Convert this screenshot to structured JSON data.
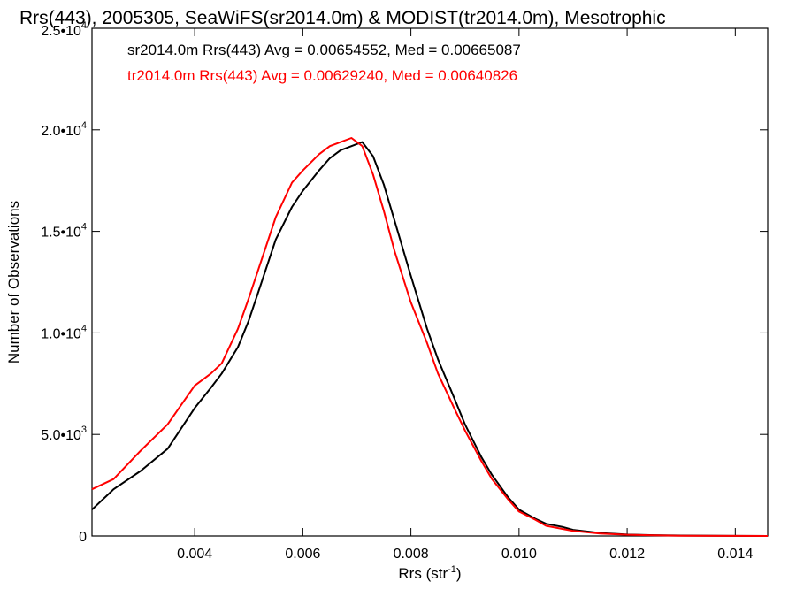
{
  "chart_data": {
    "type": "line",
    "title": "Rrs(443), 2005305, SeaWiFS(sr2014.0m) & MODIST(tr2014.0m), Mesotrophic",
    "xlabel": "Rrs (str",
    "xlabel_sup": "-1",
    "xlabel_close": ")",
    "ylabel": "Number of Observations",
    "xlim": [
      0.0021,
      0.0146
    ],
    "ylim": [
      0,
      25000
    ],
    "xticks": [
      {
        "value": 0.004,
        "label": "0.004"
      },
      {
        "value": 0.006,
        "label": "0.006"
      },
      {
        "value": 0.008,
        "label": "0.008"
      },
      {
        "value": 0.01,
        "label": "0.010"
      },
      {
        "value": 0.012,
        "label": "0.012"
      },
      {
        "value": 0.014,
        "label": "0.014"
      }
    ],
    "yticks": [
      {
        "value": 0,
        "mant": "0",
        "exp": ""
      },
      {
        "value": 5000,
        "mant": "5.0•10",
        "exp": "3"
      },
      {
        "value": 10000,
        "mant": "1.0•10",
        "exp": "4"
      },
      {
        "value": 15000,
        "mant": "1.5•10",
        "exp": "4"
      },
      {
        "value": 20000,
        "mant": "2.0•10",
        "exp": "4"
      },
      {
        "value": 25000,
        "mant": "2.5•10",
        "exp": "4"
      }
    ],
    "grid": false,
    "legend_position": "top-left",
    "series": [
      {
        "name": "sr2014.0m Rrs(443) Avg = 0.00654552, Med = 0.00665087",
        "color": "#000000",
        "x": [
          0.0021,
          0.0025,
          0.003,
          0.0035,
          0.004,
          0.0043,
          0.0045,
          0.0048,
          0.005,
          0.0052,
          0.0055,
          0.0058,
          0.006,
          0.0063,
          0.0065,
          0.0067,
          0.0069,
          0.0071,
          0.0073,
          0.0075,
          0.0077,
          0.008,
          0.0083,
          0.0085,
          0.0088,
          0.009,
          0.0093,
          0.0095,
          0.0098,
          0.01,
          0.0103,
          0.0105,
          0.0108,
          0.011,
          0.0115,
          0.012,
          0.0125,
          0.013,
          0.014,
          0.0146
        ],
        "values": [
          1300,
          2300,
          3200,
          4300,
          6300,
          7300,
          8000,
          9300,
          10600,
          12200,
          14600,
          16200,
          17000,
          18000,
          18600,
          19000,
          19200,
          19400,
          18700,
          17300,
          15500,
          12800,
          10200,
          8700,
          6800,
          5500,
          3900,
          3000,
          1900,
          1300,
          850,
          600,
          450,
          300,
          150,
          70,
          40,
          20,
          5,
          0
        ]
      },
      {
        "name": "tr2014.0m Rrs(443) Avg = 0.00629240, Med = 0.00640826",
        "color": "#ff0000",
        "x": [
          0.0021,
          0.0025,
          0.003,
          0.0035,
          0.004,
          0.0043,
          0.0045,
          0.0048,
          0.005,
          0.0052,
          0.0055,
          0.0058,
          0.006,
          0.0063,
          0.0065,
          0.0067,
          0.0069,
          0.0071,
          0.0073,
          0.0075,
          0.0077,
          0.008,
          0.0083,
          0.0085,
          0.0088,
          0.009,
          0.0093,
          0.0095,
          0.0098,
          0.01,
          0.0103,
          0.0105,
          0.0108,
          0.011,
          0.0115,
          0.012,
          0.0125,
          0.013,
          0.014,
          0.0146
        ],
        "values": [
          2300,
          2800,
          4200,
          5500,
          7400,
          8000,
          8500,
          10200,
          11700,
          13300,
          15700,
          17400,
          18000,
          18800,
          19200,
          19400,
          19600,
          19200,
          17800,
          16000,
          14000,
          11500,
          9500,
          8000,
          6300,
          5200,
          3700,
          2800,
          1800,
          1200,
          800,
          500,
          350,
          250,
          120,
          60,
          30,
          15,
          5,
          0
        ]
      }
    ]
  }
}
